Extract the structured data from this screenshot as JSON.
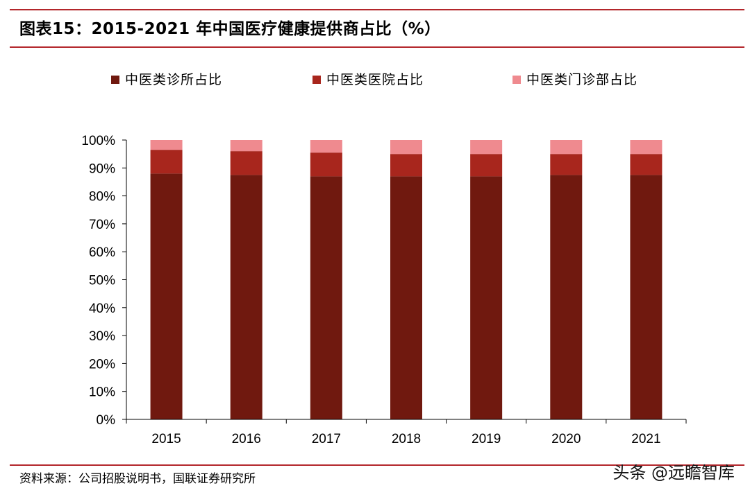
{
  "title": "图表15：2015-2021 年中国医疗健康提供商占比（%）",
  "source": "资料来源：公司招股说明书，国联证券研究所",
  "watermark": "头条 @远瞻智库",
  "colors": {
    "rule": "#b3262b",
    "clinic": "#70190f",
    "hospital": "#a8261d",
    "outpatient": "#ef8a8f"
  },
  "chart_data": {
    "type": "bar",
    "stacked": true,
    "categories": [
      "2015",
      "2016",
      "2017",
      "2018",
      "2019",
      "2020",
      "2021"
    ],
    "series": [
      {
        "name": "中医类诊所占比",
        "values": [
          88.0,
          87.5,
          87.0,
          87.0,
          87.0,
          87.5,
          87.5
        ]
      },
      {
        "name": "中医类医院占比",
        "values": [
          8.5,
          8.5,
          8.5,
          8.0,
          8.0,
          7.5,
          7.5
        ]
      },
      {
        "name": "中医类门诊部占比",
        "values": [
          3.5,
          4.0,
          4.5,
          5.0,
          5.0,
          5.0,
          5.0
        ]
      }
    ],
    "yticks": [
      "0%",
      "10%",
      "20%",
      "30%",
      "40%",
      "50%",
      "60%",
      "70%",
      "80%",
      "90%",
      "100%"
    ],
    "ylim": [
      0,
      100
    ],
    "legend_position": "top",
    "grid": false
  }
}
